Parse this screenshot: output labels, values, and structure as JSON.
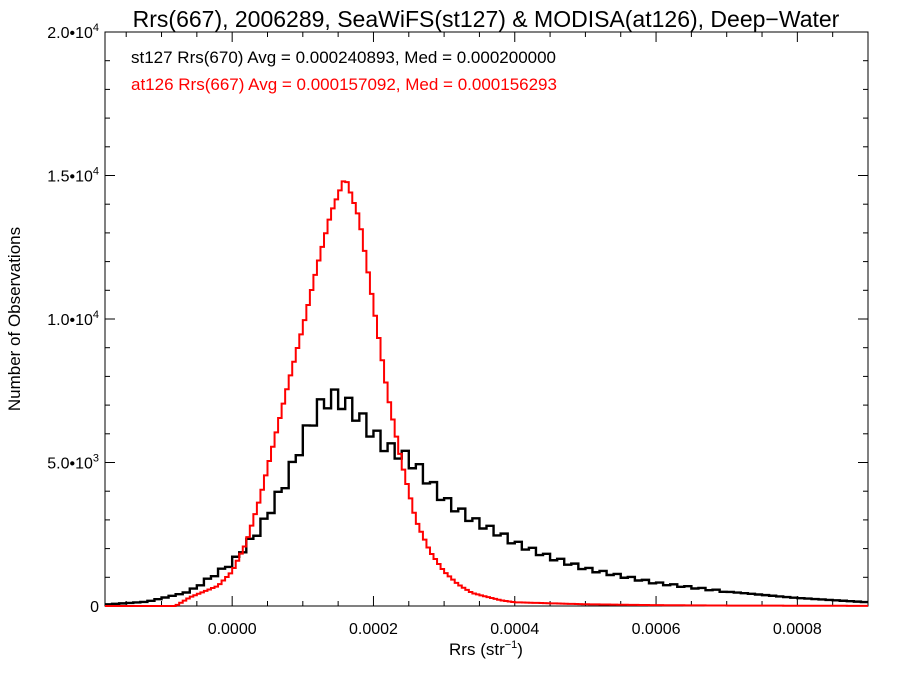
{
  "chart_data": {
    "type": "histogram",
    "title": "Rrs(667), 2006289, SeaWiFS(st127) & MODISA(at126), Deep−Water",
    "xlabel": "Rrs (str",
    "xlabel_sup": "−1",
    "xlabel_end": ")",
    "ylabel": "Number of Observations",
    "xlim": [
      -0.00018,
      0.0009
    ],
    "ylim": [
      0,
      20000
    ],
    "x_ticks": [
      {
        "value": 0.0,
        "label": "0.0000"
      },
      {
        "value": 0.0002,
        "label": "0.0002"
      },
      {
        "value": 0.0004,
        "label": "0.0004"
      },
      {
        "value": 0.0006,
        "label": "0.0006"
      },
      {
        "value": 0.0008,
        "label": "0.0008"
      }
    ],
    "y_ticks": [
      {
        "value": 0,
        "mant": "0",
        "exp": ""
      },
      {
        "value": 5000,
        "mant": "5.0•10",
        "exp": "3"
      },
      {
        "value": 10000,
        "mant": "1.0•10",
        "exp": "4"
      },
      {
        "value": 15000,
        "mant": "1.5•10",
        "exp": "4"
      },
      {
        "value": 20000,
        "mant": "2.0•10",
        "exp": "4"
      }
    ],
    "bin_width": 5e-06,
    "series": [
      {
        "name": "st127 Rrs(670) Avg = 0.000240893, Med = 0.000200000",
        "color": "#000000",
        "step_width": 1e-05,
        "jagged": true,
        "points": [
          [
            -0.00018,
            50
          ],
          [
            -0.00012,
            150
          ],
          [
            -6e-05,
            500
          ],
          [
            0.0,
            1500
          ],
          [
            4e-05,
            2700
          ],
          [
            8e-05,
            4500
          ],
          [
            0.0001,
            5800
          ],
          [
            0.00012,
            6800
          ],
          [
            0.00014,
            7300
          ],
          [
            0.00016,
            7100
          ],
          [
            0.00018,
            6600
          ],
          [
            0.0002,
            6000
          ],
          [
            0.00022,
            5500
          ],
          [
            0.00024,
            5300
          ],
          [
            0.00026,
            4900
          ],
          [
            0.00028,
            4300
          ],
          [
            0.0003,
            3700
          ],
          [
            0.00034,
            3000
          ],
          [
            0.00038,
            2500
          ],
          [
            0.0004,
            2200
          ],
          [
            0.00045,
            1700
          ],
          [
            0.0005,
            1300
          ],
          [
            0.00055,
            1050
          ],
          [
            0.0006,
            800
          ],
          [
            0.0007,
            500
          ],
          [
            0.0008,
            280
          ],
          [
            0.0009,
            130
          ]
        ]
      },
      {
        "name": "at126 Rrs(667) Avg = 0.000157092, Med = 0.000156293",
        "color": "#ff0000",
        "step_width": 5e-06,
        "jagged": false,
        "points": [
          [
            -0.00018,
            0
          ],
          [
            -8e-05,
            0
          ],
          [
            -6e-05,
            300
          ],
          [
            -4e-05,
            500
          ],
          [
            -2e-05,
            700
          ],
          [
            0.0,
            1200
          ],
          [
            2e-05,
            2200
          ],
          [
            4e-05,
            3800
          ],
          [
            6e-05,
            5800
          ],
          [
            8e-05,
            7800
          ],
          [
            0.0001,
            9700
          ],
          [
            0.00012,
            11800
          ],
          [
            0.00014,
            13700
          ],
          [
            0.00016,
            14950
          ],
          [
            0.00018,
            13500
          ],
          [
            0.0002,
            10500
          ],
          [
            0.00022,
            7400
          ],
          [
            0.00024,
            5000
          ],
          [
            0.00026,
            3000
          ],
          [
            0.00028,
            1900
          ],
          [
            0.0003,
            1200
          ],
          [
            0.00032,
            750
          ],
          [
            0.00034,
            450
          ],
          [
            0.00038,
            200
          ],
          [
            0.0004,
            130
          ],
          [
            0.0005,
            60
          ],
          [
            0.0006,
            30
          ],
          [
            0.0007,
            15
          ],
          [
            0.0009,
            5
          ]
        ]
      }
    ]
  }
}
